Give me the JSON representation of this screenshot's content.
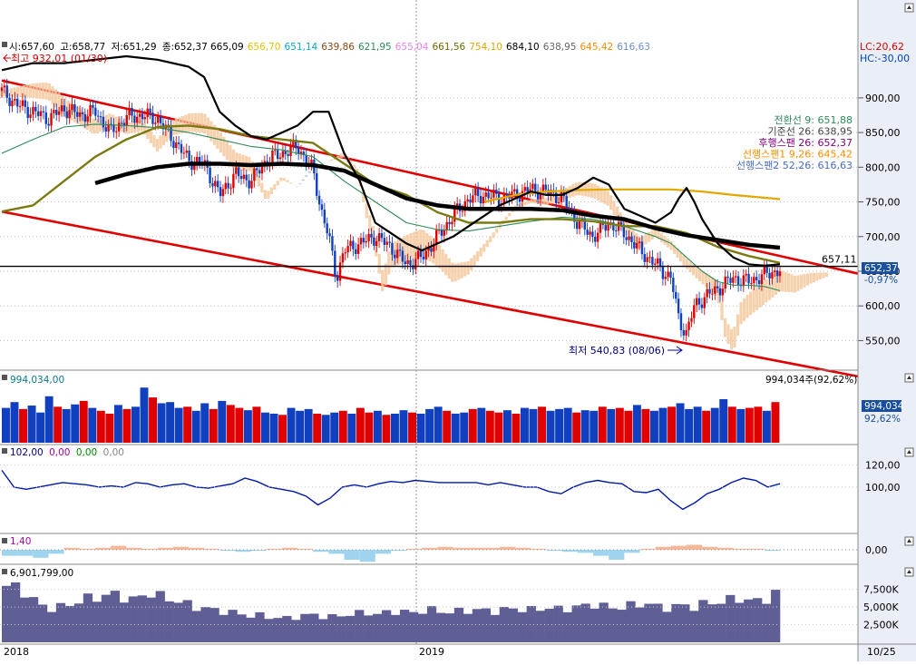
{
  "chart_data": {
    "type": "line",
    "main": {
      "ohlc_labels": [
        "시:657,60",
        "고:658,77",
        "저:651,29",
        "종:652,37"
      ],
      "indicators": [
        {
          "text": "665,09",
          "color": "#000000"
        },
        {
          "text": "656,70",
          "color": "#e6c200"
        },
        {
          "text": "651,14",
          "color": "#00aacc"
        },
        {
          "text": "639,86",
          "color": "#8b4513"
        },
        {
          "text": "621,95",
          "color": "#2e8b57"
        },
        {
          "text": "655,04",
          "color": "#ee82ee"
        },
        {
          "text": "661,56",
          "color": "#6b6b00"
        },
        {
          "text": "754,10",
          "color": "#e0a800"
        },
        {
          "text": "684,10",
          "color": "#000000"
        },
        {
          "text": "638,95",
          "color": "#666666"
        },
        {
          "text": "645,42",
          "color": "#ff8c00"
        },
        {
          "text": "616,63",
          "color": "#6a8fd0"
        }
      ],
      "lc": "LC:20,62",
      "hc": "HC:-30,00",
      "high_marker": "최고 932,01 (01/30)",
      "low_marker": "최저 540,83 (08/06)",
      "ichimoku_legend": [
        {
          "text": "전환선 9: 651,88",
          "color": "#2e8b57"
        },
        {
          "text": "기준선 26: 638,95",
          "color": "#444444"
        },
        {
          "text": "후행스팬 26: 652,37",
          "color": "#800080"
        },
        {
          "text": "선행스팬1 9,26: 645,42",
          "color": "#ff8c00"
        },
        {
          "text": "선행스팬2 52,26: 616,63",
          "color": "#4a6fbf"
        }
      ],
      "ylim": [
        510,
        960
      ],
      "y_ticks": [
        550,
        600,
        650,
        700,
        750,
        800,
        850,
        900
      ],
      "y_tick_labels": [
        "550,00",
        "600,00",
        "650,00",
        "700,00",
        "750,00",
        "800,00",
        "850,00",
        "900,00"
      ],
      "horizontal_line": {
        "value": 657.11,
        "label": "657,11"
      },
      "current_price": {
        "label": "652,37",
        "change": "-0,97%",
        "value": 652.37
      },
      "trend_channel": {
        "upper": [
          [
            0,
            925
          ],
          [
            1,
            672
          ]
        ],
        "lower": [
          [
            0,
            736
          ],
          [
            1,
            520
          ]
        ]
      },
      "close_points": [
        [
          0,
          910
        ],
        [
          0.02,
          890
        ],
        [
          0.04,
          880
        ],
        [
          0.06,
          870
        ],
        [
          0.08,
          885
        ],
        [
          0.1,
          875
        ],
        [
          0.12,
          880
        ],
        [
          0.14,
          850
        ],
        [
          0.16,
          872
        ],
        [
          0.18,
          875
        ],
        [
          0.2,
          870
        ],
        [
          0.22,
          840
        ],
        [
          0.24,
          810
        ],
        [
          0.26,
          805
        ],
        [
          0.28,
          760
        ],
        [
          0.3,
          790
        ],
        [
          0.32,
          780
        ],
        [
          0.34,
          810
        ],
        [
          0.36,
          820
        ],
        [
          0.38,
          830
        ],
        [
          0.4,
          795
        ],
        [
          0.41,
          740
        ],
        [
          0.42,
          700
        ],
        [
          0.43,
          640
        ],
        [
          0.44,
          680
        ],
        [
          0.46,
          690
        ],
        [
          0.48,
          700
        ],
        [
          0.5,
          685
        ],
        [
          0.52,
          660
        ],
        [
          0.54,
          670
        ],
        [
          0.56,
          700
        ],
        [
          0.58,
          730
        ],
        [
          0.6,
          755
        ],
        [
          0.62,
          760
        ],
        [
          0.64,
          755
        ],
        [
          0.66,
          760
        ],
        [
          0.68,
          768
        ],
        [
          0.7,
          765
        ],
        [
          0.72,
          755
        ],
        [
          0.74,
          720
        ],
        [
          0.76,
          700
        ],
        [
          0.78,
          720
        ],
        [
          0.8,
          705
        ],
        [
          0.82,
          680
        ],
        [
          0.84,
          660
        ],
        [
          0.86,
          640
        ],
        [
          0.87,
          580
        ],
        [
          0.88,
          560
        ],
        [
          0.89,
          600
        ],
        [
          0.9,
          610
        ],
        [
          0.92,
          625
        ],
        [
          0.94,
          640
        ],
        [
          0.96,
          635
        ],
        [
          0.98,
          645
        ],
        [
          1.0,
          652
        ]
      ],
      "ma_black_thin": [
        [
          0,
          940
        ],
        [
          0.04,
          950
        ],
        [
          0.08,
          950
        ],
        [
          0.12,
          955
        ],
        [
          0.16,
          960
        ],
        [
          0.2,
          955
        ],
        [
          0.24,
          945
        ],
        [
          0.26,
          930
        ],
        [
          0.28,
          880
        ],
        [
          0.3,
          860
        ],
        [
          0.32,
          845
        ],
        [
          0.34,
          840
        ],
        [
          0.36,
          850
        ],
        [
          0.38,
          860
        ],
        [
          0.4,
          880
        ],
        [
          0.42,
          880
        ],
        [
          0.44,
          820
        ],
        [
          0.46,
          780
        ],
        [
          0.48,
          720
        ],
        [
          0.5,
          705
        ],
        [
          0.52,
          690
        ],
        [
          0.54,
          680
        ],
        [
          0.56,
          690
        ],
        [
          0.58,
          700
        ],
        [
          0.6,
          715
        ],
        [
          0.62,
          730
        ],
        [
          0.64,
          745
        ],
        [
          0.66,
          755
        ],
        [
          0.68,
          765
        ],
        [
          0.7,
          760
        ],
        [
          0.72,
          760
        ],
        [
          0.74,
          770
        ],
        [
          0.76,
          785
        ],
        [
          0.78,
          775
        ],
        [
          0.8,
          740
        ],
        [
          0.82,
          730
        ],
        [
          0.84,
          720
        ],
        [
          0.86,
          735
        ],
        [
          0.87,
          755
        ],
        [
          0.88,
          770
        ],
        [
          0.89,
          750
        ],
        [
          0.9,
          725
        ],
        [
          0.92,
          690
        ],
        [
          0.94,
          670
        ],
        [
          0.96,
          660
        ],
        [
          0.98,
          658
        ],
        [
          1.0,
          660
        ]
      ],
      "ma_black_thick": [
        [
          0.12,
          777
        ],
        [
          0.16,
          790
        ],
        [
          0.2,
          800
        ],
        [
          0.24,
          805
        ],
        [
          0.28,
          805
        ],
        [
          0.32,
          803
        ],
        [
          0.36,
          805
        ],
        [
          0.4,
          803
        ],
        [
          0.44,
          795
        ],
        [
          0.48,
          775
        ],
        [
          0.52,
          755
        ],
        [
          0.56,
          745
        ],
        [
          0.6,
          740
        ],
        [
          0.64,
          740
        ],
        [
          0.68,
          740
        ],
        [
          0.72,
          738
        ],
        [
          0.76,
          730
        ],
        [
          0.8,
          725
        ],
        [
          0.84,
          712
        ],
        [
          0.88,
          702
        ],
        [
          0.92,
          695
        ],
        [
          0.96,
          688
        ],
        [
          1.0,
          684
        ]
      ],
      "ma_olive": [
        [
          0,
          736
        ],
        [
          0.04,
          745
        ],
        [
          0.08,
          780
        ],
        [
          0.12,
          815
        ],
        [
          0.16,
          840
        ],
        [
          0.2,
          858
        ],
        [
          0.24,
          860
        ],
        [
          0.28,
          855
        ],
        [
          0.32,
          845
        ],
        [
          0.36,
          840
        ],
        [
          0.4,
          835
        ],
        [
          0.44,
          805
        ],
        [
          0.48,
          775
        ],
        [
          0.52,
          760
        ],
        [
          0.56,
          735
        ],
        [
          0.6,
          720
        ],
        [
          0.64,
          720
        ],
        [
          0.68,
          725
        ],
        [
          0.72,
          725
        ],
        [
          0.76,
          722
        ],
        [
          0.8,
          715
        ],
        [
          0.84,
          715
        ],
        [
          0.88,
          705
        ],
        [
          0.92,
          685
        ],
        [
          0.96,
          672
        ],
        [
          1.0,
          662
        ]
      ],
      "ma_gold": [
        [
          0.62,
          750
        ],
        [
          0.66,
          760
        ],
        [
          0.7,
          765
        ],
        [
          0.74,
          767
        ],
        [
          0.78,
          768
        ],
        [
          0.82,
          768
        ],
        [
          0.86,
          768
        ],
        [
          0.9,
          765
        ],
        [
          0.94,
          760
        ],
        [
          1.0,
          754
        ]
      ],
      "ma_green": [
        [
          0,
          820
        ],
        [
          0.04,
          840
        ],
        [
          0.08,
          858
        ],
        [
          0.12,
          862
        ],
        [
          0.16,
          860
        ],
        [
          0.2,
          857
        ],
        [
          0.24,
          850
        ],
        [
          0.28,
          840
        ],
        [
          0.32,
          830
        ],
        [
          0.36,
          825
        ],
        [
          0.4,
          815
        ],
        [
          0.44,
          780
        ],
        [
          0.48,
          750
        ],
        [
          0.52,
          720
        ],
        [
          0.56,
          710
        ],
        [
          0.6,
          708
        ],
        [
          0.64,
          715
        ],
        [
          0.68,
          722
        ],
        [
          0.72,
          728
        ],
        [
          0.76,
          725
        ],
        [
          0.8,
          715
        ],
        [
          0.84,
          700
        ],
        [
          0.86,
          690
        ],
        [
          0.88,
          670
        ],
        [
          0.9,
          650
        ],
        [
          0.92,
          635
        ],
        [
          0.94,
          630
        ],
        [
          0.96,
          630
        ],
        [
          0.98,
          628
        ],
        [
          1.0,
          622
        ]
      ]
    },
    "volume": {
      "label": "994,034,00",
      "right_label": "994,034주(92,62%)",
      "box_value": "994,034",
      "box_pct": "92,62%",
      "bars": [
        60,
        70,
        58,
        64,
        52,
        80,
        62,
        58,
        66,
        72,
        60,
        55,
        50,
        65,
        58,
        62,
        95,
        78,
        68,
        70,
        60,
        62,
        55,
        68,
        58,
        72,
        65,
        60,
        56,
        62,
        52,
        50,
        48,
        60,
        55,
        58,
        50,
        48,
        52,
        55,
        50,
        60,
        52,
        55,
        48,
        50,
        56,
        52,
        50,
        58,
        62,
        55,
        50,
        52,
        58,
        60,
        55,
        52,
        56,
        50,
        60,
        58,
        62,
        55,
        58,
        60,
        52,
        56,
        55,
        62,
        58,
        60,
        55,
        65,
        58,
        55,
        60,
        62,
        68,
        58,
        62,
        55,
        60,
        75,
        62,
        58,
        60,
        62,
        55,
        70
      ]
    },
    "oscillator": {
      "label": "102,00",
      "extra_labels": [
        {
          "text": "0,00",
          "color": "#aa00aa"
        },
        {
          "text": "0,00",
          "color": "#008800"
        },
        {
          "text": "0,00",
          "color": "#888888"
        }
      ],
      "ylim": [
        60,
        130
      ],
      "y_ticks": [
        100,
        120
      ],
      "y_tick_labels": [
        "100,00",
        "120,00"
      ],
      "values": [
        115,
        100,
        98,
        100,
        102,
        104,
        103,
        102,
        100,
        101,
        100,
        104,
        103,
        100,
        102,
        103,
        100,
        99,
        101,
        103,
        108,
        105,
        100,
        98,
        96,
        92,
        84,
        90,
        100,
        102,
        100,
        103,
        105,
        104,
        106,
        105,
        104,
        104,
        104,
        104,
        102,
        104,
        102,
        100,
        100,
        96,
        94,
        100,
        104,
        106,
        104,
        103,
        96,
        95,
        98,
        88,
        80,
        86,
        94,
        98,
        104,
        108,
        106,
        100,
        103
      ]
    },
    "macd": {
      "label": "1,40",
      "y_ticks": [
        0
      ],
      "y_tick_labels": [
        "0,00"
      ],
      "values": [
        -6,
        -6,
        -8,
        -4,
        2,
        1,
        2,
        4,
        2,
        1,
        2,
        3,
        2,
        1,
        -1,
        -2,
        -1,
        1,
        2,
        1,
        -2,
        -4,
        -10,
        -12,
        -4,
        -1,
        1,
        2,
        3,
        2,
        2,
        2,
        3,
        2,
        1,
        -1,
        -2,
        -3,
        -6,
        -10,
        -3,
        1,
        3,
        4,
        5,
        3,
        2,
        1,
        1,
        -1
      ]
    },
    "volume2": {
      "label": "6,901,799,00",
      "y_ticks": [
        2500,
        5000,
        7500
      ],
      "y_tick_labels": [
        "2,500K",
        "5,000K",
        "7,500K"
      ],
      "ymax": 9000,
      "bars": [
        8000,
        7800,
        7200,
        6000,
        5200,
        4800,
        5000,
        5400,
        5800,
        6200,
        6400,
        6600,
        6800,
        6400,
        6000,
        6600,
        7000,
        6500,
        6200,
        5800,
        5400,
        5000,
        4800,
        4600,
        4400,
        4200,
        4000,
        3800,
        3800,
        3600,
        3500,
        3400,
        3600,
        3800,
        3900,
        3700,
        3600,
        3800,
        4000,
        4100,
        4200,
        4000,
        4200,
        4400,
        4300,
        4200,
        4500,
        4600,
        4400,
        4300,
        4400,
        4500,
        4600,
        4500,
        4400,
        4600,
        4800,
        4700,
        4600,
        4800,
        4900,
        4700,
        4800,
        5000,
        5200,
        5400,
        5100,
        4900,
        5000,
        5200,
        5400,
        5500,
        5000,
        4900,
        5100,
        5200,
        5000,
        5400,
        5600,
        5800,
        6000,
        6200,
        6000,
        5800,
        6200,
        6900
      ]
    },
    "x_labels": [
      "2018",
      "2019"
    ],
    "right_bottom_label": "10/25"
  }
}
